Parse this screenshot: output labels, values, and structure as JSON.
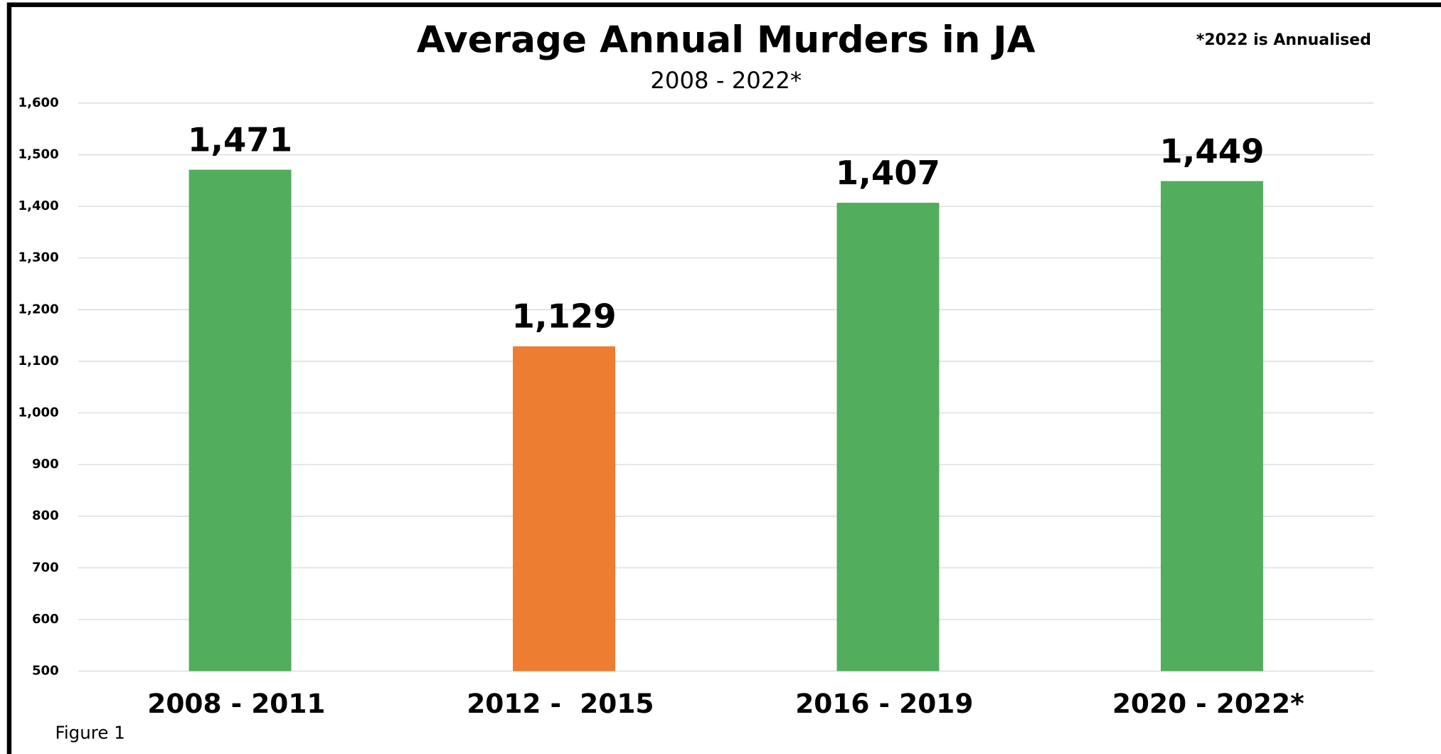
{
  "chart_data": {
    "type": "bar",
    "title": "Average Annual Murders in JA",
    "subtitle": "2008 - 2022*",
    "note": "*2022 is Annualised",
    "caption": "Figure 1",
    "categories": [
      "2008 - 2011",
      "2012 -  2015",
      "2016 - 2019",
      "2020 - 2022*"
    ],
    "values": [
      1471,
      1129,
      1407,
      1449
    ],
    "value_labels": [
      "1,471",
      "1,129",
      "1,407",
      "1,449"
    ],
    "colors": [
      "#52ad5c",
      "#ed7d31",
      "#52ad5c",
      "#52ad5c"
    ],
    "ylim": [
      500,
      1600
    ],
    "yticks": [
      {
        "value": 1600,
        "label": "1,600"
      },
      {
        "value": 1500,
        "label": "1,500"
      },
      {
        "value": 1400,
        "label": "1,400"
      },
      {
        "value": 1300,
        "label": "1,300"
      },
      {
        "value": 1200,
        "label": "1,200"
      },
      {
        "value": 1100,
        "label": "1,100"
      },
      {
        "value": 1000,
        "label": "1,000"
      },
      900,
      800,
      700,
      600,
      500
    ],
    "grid": true
  }
}
